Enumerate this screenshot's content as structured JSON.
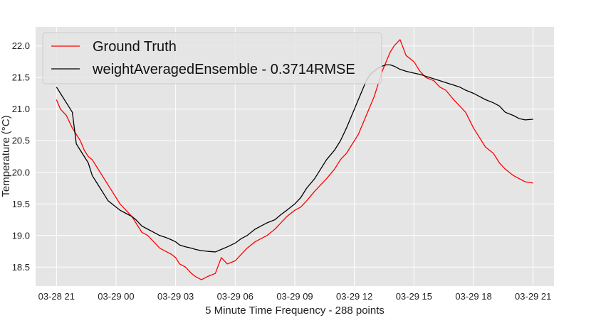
{
  "chart_data": {
    "type": "line",
    "xlabel": "5 Minute Time Frequency - 288 points",
    "ylabel": "Temperature (°C)",
    "x_tick_labels": [
      "03-28 21",
      "03-29 00",
      "03-29 03",
      "03-29 06",
      "03-29 09",
      "03-29 12",
      "03-29 15",
      "03-29 18",
      "03-29 21"
    ],
    "x_tick_hours": [
      0,
      3,
      6,
      9,
      12,
      15,
      18,
      21,
      24
    ],
    "x_unit": "hours since 03-28 21:00",
    "xlim": [
      -1.05,
      25.05
    ],
    "y_ticks": [
      18.5,
      19.0,
      19.5,
      20.0,
      20.5,
      21.0,
      21.5,
      22.0
    ],
    "y_tick_labels": [
      "18.5",
      "19.0",
      "19.5",
      "20.0",
      "20.5",
      "21.0",
      "21.5",
      "22.0"
    ],
    "ylim": [
      18.2,
      22.3
    ],
    "grid": true,
    "legend_position": "top-left",
    "background_color": "#e5e5e5",
    "series": [
      {
        "name": "Ground Truth",
        "color": "#ff0000",
        "x": [
          0,
          0.2,
          0.5,
          0.8,
          1.0,
          1.2,
          1.4,
          1.6,
          1.8,
          2.0,
          2.2,
          2.4,
          2.6,
          2.8,
          3.0,
          3.2,
          3.5,
          3.8,
          4.0,
          4.3,
          4.6,
          4.9,
          5.2,
          5.5,
          5.8,
          6.0,
          6.2,
          6.5,
          6.8,
          7.0,
          7.3,
          7.6,
          8.0,
          8.3,
          8.6,
          9.0,
          9.3,
          9.6,
          10.0,
          10.3,
          10.6,
          11.0,
          11.3,
          11.6,
          12.0,
          12.3,
          12.6,
          13.0,
          13.3,
          13.6,
          14.0,
          14.3,
          14.6,
          14.8,
          15.0,
          15.2,
          15.4,
          15.6,
          15.8,
          16.0,
          16.2,
          16.4,
          16.6,
          16.8,
          17.0,
          17.3,
          17.6,
          18.0,
          18.3,
          18.6,
          19.0,
          19.3,
          19.6,
          20.0,
          20.3,
          20.6,
          21.0,
          21.3,
          21.6,
          22.0,
          22.3,
          22.6,
          23.0,
          23.3,
          23.6,
          24.0
        ],
        "y": [
          21.15,
          21.0,
          20.9,
          20.7,
          20.6,
          20.5,
          20.35,
          20.25,
          20.2,
          20.1,
          20.0,
          19.9,
          19.8,
          19.7,
          19.6,
          19.5,
          19.4,
          19.3,
          19.2,
          19.05,
          19.0,
          18.9,
          18.8,
          18.75,
          18.7,
          18.65,
          18.55,
          18.5,
          18.4,
          18.35,
          18.3,
          18.35,
          18.4,
          18.65,
          18.55,
          18.6,
          18.7,
          18.8,
          18.9,
          18.95,
          19.0,
          19.1,
          19.2,
          19.3,
          19.4,
          19.45,
          19.55,
          19.7,
          19.8,
          19.9,
          20.05,
          20.2,
          20.3,
          20.4,
          20.5,
          20.6,
          20.75,
          20.9,
          21.05,
          21.2,
          21.4,
          21.6,
          21.75,
          21.9,
          22.0,
          22.1,
          21.85,
          21.75,
          21.6,
          21.5,
          21.45,
          21.35,
          21.3,
          21.15,
          21.05,
          20.95,
          20.7,
          20.55,
          20.4,
          20.3,
          20.15,
          20.05,
          19.95,
          19.9,
          19.85,
          19.83
        ]
      },
      {
        "name": "weightAveragedEnsemble - 0.3714RMSE",
        "color": "#000000",
        "x": [
          0,
          0.2,
          0.5,
          0.8,
          1.0,
          1.2,
          1.4,
          1.6,
          1.8,
          2.0,
          2.2,
          2.4,
          2.6,
          2.8,
          3.0,
          3.2,
          3.5,
          3.8,
          4.0,
          4.3,
          4.6,
          4.9,
          5.2,
          5.5,
          5.8,
          6.0,
          6.2,
          6.5,
          6.8,
          7.0,
          7.3,
          7.6,
          8.0,
          8.3,
          8.6,
          9.0,
          9.3,
          9.6,
          10.0,
          10.3,
          10.6,
          11.0,
          11.3,
          11.6,
          12.0,
          12.3,
          12.6,
          13.0,
          13.3,
          13.6,
          14.0,
          14.3,
          14.6,
          14.8,
          15.0,
          15.2,
          15.4,
          15.6,
          15.8,
          16.0,
          16.2,
          16.4,
          16.6,
          16.8,
          17.0,
          17.3,
          17.6,
          18.0,
          18.3,
          18.6,
          19.0,
          19.3,
          19.6,
          20.0,
          20.3,
          20.6,
          21.0,
          21.3,
          21.6,
          22.0,
          22.3,
          22.6,
          23.0,
          23.3,
          23.6,
          24.0
        ],
        "y": [
          21.35,
          21.25,
          21.1,
          20.95,
          20.45,
          20.35,
          20.25,
          20.15,
          19.95,
          19.85,
          19.75,
          19.65,
          19.55,
          19.5,
          19.45,
          19.4,
          19.35,
          19.3,
          19.25,
          19.15,
          19.1,
          19.05,
          19.0,
          18.97,
          18.93,
          18.9,
          18.85,
          18.82,
          18.8,
          18.78,
          18.76,
          18.75,
          18.74,
          18.78,
          18.82,
          18.88,
          18.95,
          19.0,
          19.1,
          19.15,
          19.2,
          19.25,
          19.33,
          19.4,
          19.5,
          19.6,
          19.75,
          19.9,
          20.05,
          20.2,
          20.35,
          20.5,
          20.7,
          20.85,
          21.0,
          21.15,
          21.3,
          21.45,
          21.55,
          21.6,
          21.65,
          21.68,
          21.7,
          21.7,
          21.68,
          21.63,
          21.6,
          21.57,
          21.55,
          21.52,
          21.48,
          21.45,
          21.42,
          21.38,
          21.35,
          21.3,
          21.25,
          21.2,
          21.15,
          21.1,
          21.05,
          20.95,
          20.9,
          20.85,
          20.83,
          20.84
        ]
      }
    ]
  }
}
